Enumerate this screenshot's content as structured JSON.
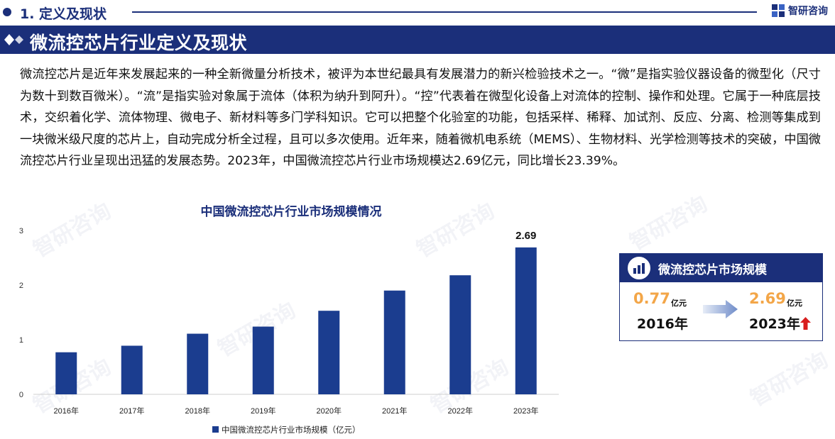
{
  "header": {
    "section_title": "1. 定义及现状",
    "brand_name": "智研咨询"
  },
  "banner": {
    "title": "微流控芯片行业定义及现状"
  },
  "intro_paragraph": "微流控芯片是近年来发展起来的一种全新微量分析技术，被评为本世纪最具有发展潜力的新兴检验技术之一。“微”是指实验仪器设备的微型化（尺寸为数十到数百微米）。“流”是指实验对象属于流体（体积为纳升到阿升）。“控”代表着在微型化设备上对流体的控制、操作和处理。它属于一种底层技术，交织着化学、流体物理、微电子、新材料等多门学科知识。它可以把整个化验室的功能，包括采样、稀释、加试剂、反应、分离、检测等集成到一块微米级尺度的芯片上，自动完成分析全过程，且可以多次使用。近年来，随着微机电系统（MEMS）、生物材料、光学检测等技术的突破，中国微流控芯片行业呈现出迅猛的发展态势。2023年，中国微流控芯片行业市场规模达2.69亿元，同比增长23.39%。",
  "chart_data": {
    "type": "bar",
    "title": "中国微流控芯片行业市场规模情况",
    "categories": [
      "2016年",
      "2017年",
      "2018年",
      "2019年",
      "2020年",
      "2021年",
      "2022年",
      "2023年"
    ],
    "series": [
      {
        "name": "中国微流控芯片行业市场规模（亿元）",
        "values": [
          0.77,
          0.89,
          1.11,
          1.24,
          1.53,
          1.9,
          2.18,
          2.69
        ],
        "color": "#1b3d8f"
      }
    ],
    "data_labels": [
      {
        "category": "2023年",
        "text": "2.69"
      }
    ],
    "yticks": [
      "0",
      "1",
      "2",
      "3"
    ],
    "ylim": [
      0,
      3
    ],
    "grid": false,
    "legend_position": "bottom",
    "xlabel": "",
    "ylabel": ""
  },
  "market_card": {
    "title": "微流控芯片市场规模",
    "start_value": "0.77",
    "start_unit": "亿元",
    "start_year": "2016年",
    "end_value": "2.69",
    "end_unit": "亿元",
    "end_year": "2023年"
  },
  "colors": {
    "brand_navy": "#1b2f7a",
    "bar_blue": "#1b3d8f",
    "highlight_orange": "#f3a648",
    "up_red": "#d81e1e"
  }
}
